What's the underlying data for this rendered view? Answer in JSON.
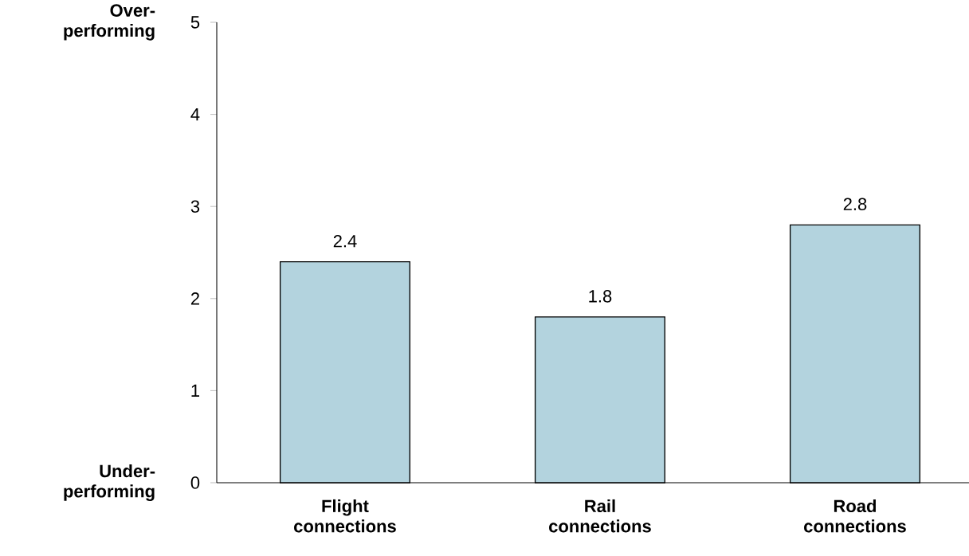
{
  "chart_data": {
    "type": "bar",
    "categories": [
      "Flight connections",
      "Rail connections",
      "Road connections"
    ],
    "values": [
      2.4,
      1.8,
      2.8
    ],
    "color": "#b3d3de",
    "ylim": [
      0,
      5
    ],
    "yticks": [
      0,
      1,
      2,
      3,
      4,
      5
    ],
    "data_labels": true,
    "grid": false,
    "annotations": [
      "Over-performing",
      "Under-performing"
    ]
  }
}
